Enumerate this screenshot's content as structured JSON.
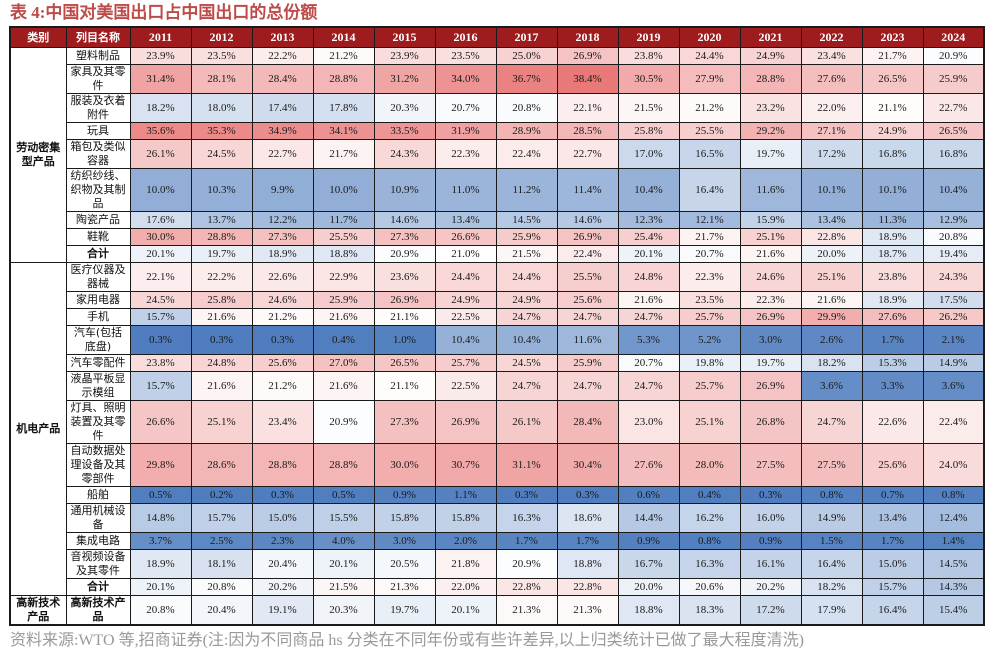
{
  "title": "表 4:中国对美国出口占中国出口的总份额",
  "source_note": "资料来源:WTO 等,招商证券(注:因为不同商品 hs 分类在不同年份或有些许差异,以上归类统计已做了最大程度清洗)",
  "colors": {
    "title_text": "#BE4B48",
    "header_bg": "#9E1B1E",
    "header_text": "#FFFFFF",
    "border": "#1A1A1A",
    "heat_blue_low": "#4E7CBE",
    "heat_white_mid": "#FFFFFF",
    "heat_red_high": "#E97878",
    "source_text": "#999999"
  },
  "chart_data": {
    "type": "table",
    "subtype": "heatmap",
    "value_format": "percent_one_decimal",
    "color_scale": {
      "low": 0,
      "mid": 21.0,
      "high": 38.4,
      "low_color": "#4E7CBE",
      "mid_color": "#FFFFFF",
      "high_color": "#E97878"
    },
    "col_headers": [
      "类别",
      "列目名称",
      "2011",
      "2012",
      "2013",
      "2014",
      "2015",
      "2016",
      "2017",
      "2018",
      "2019",
      "2020",
      "2021",
      "2022",
      "2023",
      "2024"
    ],
    "groups": [
      {
        "category": "劳动密集型产品",
        "rows": [
          {
            "label": "塑料制品",
            "bold": false,
            "values": [
              23.9,
              23.5,
              22.2,
              21.2,
              23.9,
              23.5,
              25.0,
              26.9,
              23.8,
              24.4,
              24.9,
              23.4,
              21.7,
              20.9
            ]
          },
          {
            "label": "家具及其零件",
            "bold": false,
            "values": [
              31.4,
              28.1,
              28.4,
              28.8,
              31.2,
              34.0,
              36.7,
              38.4,
              30.5,
              27.9,
              28.8,
              27.6,
              26.5,
              25.9
            ]
          },
          {
            "label": "服装及衣着附件",
            "bold": false,
            "values": [
              18.2,
              18.0,
              17.4,
              17.8,
              20.3,
              20.7,
              20.8,
              22.1,
              21.5,
              21.2,
              23.2,
              22.0,
              21.1,
              22.7
            ]
          },
          {
            "label": "玩具",
            "bold": false,
            "values": [
              35.6,
              35.3,
              34.9,
              34.1,
              33.5,
              31.9,
              28.9,
              28.5,
              25.8,
              25.5,
              29.2,
              27.1,
              24.9,
              26.5
            ]
          },
          {
            "label": "箱包及类似容器",
            "bold": false,
            "values": [
              26.1,
              24.5,
              22.7,
              21.7,
              24.3,
              22.3,
              22.4,
              22.7,
              17.0,
              16.5,
              19.7,
              17.2,
              16.8,
              16.8
            ]
          },
          {
            "label": "纺织纱线、织物及其制品",
            "bold": false,
            "values": [
              10.0,
              10.3,
              9.9,
              10.0,
              10.9,
              11.0,
              11.2,
              11.4,
              10.4,
              16.4,
              11.6,
              10.1,
              10.1,
              10.4
            ]
          },
          {
            "label": "陶瓷产品",
            "bold": false,
            "values": [
              17.6,
              13.7,
              12.2,
              11.7,
              14.6,
              13.4,
              14.5,
              14.6,
              12.3,
              12.1,
              15.9,
              13.4,
              11.3,
              12.9
            ]
          },
          {
            "label": "鞋靴",
            "bold": false,
            "values": [
              30.0,
              28.8,
              27.3,
              25.5,
              27.3,
              26.6,
              25.9,
              26.9,
              25.4,
              21.7,
              25.1,
              22.8,
              18.9,
              20.8
            ]
          },
          {
            "label": "合计",
            "bold": true,
            "values": [
              20.1,
              19.7,
              18.9,
              18.8,
              20.9,
              21.0,
              21.5,
              22.4,
              20.1,
              20.7,
              21.6,
              20.0,
              18.7,
              19.4
            ]
          }
        ]
      },
      {
        "category": "机电产品",
        "rows": [
          {
            "label": "医疗仪器及器械",
            "bold": false,
            "values": [
              22.1,
              22.2,
              22.6,
              22.9,
              23.6,
              24.4,
              24.4,
              25.5,
              24.8,
              22.3,
              24.6,
              25.1,
              23.8,
              24.3
            ]
          },
          {
            "label": "家用电器",
            "bold": false,
            "values": [
              24.5,
              25.8,
              24.6,
              25.9,
              26.9,
              24.9,
              24.9,
              25.6,
              21.6,
              23.5,
              22.3,
              21.6,
              18.9,
              17.5
            ]
          },
          {
            "label": "手机",
            "bold": false,
            "values": [
              15.7,
              21.6,
              21.2,
              21.6,
              21.1,
              22.5,
              24.7,
              24.7,
              24.7,
              25.7,
              26.9,
              29.9,
              27.6,
              26.2
            ]
          },
          {
            "label": "汽车(包括底盘)",
            "bold": false,
            "values": [
              0.3,
              0.3,
              0.3,
              0.4,
              1.0,
              10.4,
              10.4,
              11.6,
              5.3,
              5.2,
              3.0,
              2.6,
              1.7,
              2.1
            ]
          },
          {
            "label": "汽车零配件",
            "bold": false,
            "values": [
              23.8,
              24.8,
              25.6,
              27.0,
              26.5,
              25.7,
              24.5,
              25.9,
              20.7,
              19.8,
              19.7,
              18.2,
              15.3,
              14.9
            ]
          },
          {
            "label": "液晶平板显示模组",
            "bold": false,
            "values": [
              15.7,
              21.6,
              21.2,
              21.6,
              21.1,
              22.5,
              24.7,
              24.7,
              24.7,
              25.7,
              26.9,
              3.6,
              3.3,
              3.6
            ]
          },
          {
            "label": "灯具、照明装置及其零件",
            "bold": false,
            "values": [
              26.6,
              25.1,
              23.4,
              20.9,
              27.3,
              26.9,
              26.1,
              28.4,
              23.0,
              25.1,
              26.8,
              24.7,
              22.6,
              22.4
            ]
          },
          {
            "label": "自动数据处理设备及其零部件",
            "bold": false,
            "values": [
              29.8,
              28.6,
              28.8,
              28.8,
              30.0,
              30.7,
              31.1,
              30.4,
              27.6,
              28.0,
              27.5,
              27.5,
              25.6,
              24.0
            ]
          },
          {
            "label": "船舶",
            "bold": false,
            "values": [
              0.5,
              0.2,
              0.3,
              0.5,
              0.9,
              1.1,
              0.3,
              0.3,
              0.6,
              0.4,
              0.3,
              0.8,
              0.7,
              0.8
            ]
          },
          {
            "label": "通用机械设备",
            "bold": false,
            "values": [
              14.8,
              15.7,
              15.0,
              15.5,
              15.8,
              15.8,
              16.3,
              18.6,
              14.4,
              16.2,
              16.0,
              14.9,
              13.4,
              12.4
            ]
          },
          {
            "label": "集成电路",
            "bold": false,
            "values": [
              3.7,
              2.5,
              2.3,
              4.0,
              3.0,
              2.0,
              1.7,
              1.7,
              0.9,
              0.8,
              0.9,
              1.5,
              1.7,
              1.4
            ]
          },
          {
            "label": "音视频设备及其零件",
            "bold": false,
            "values": [
              18.9,
              18.1,
              20.4,
              20.1,
              20.5,
              21.8,
              20.9,
              18.8,
              16.7,
              16.3,
              16.1,
              16.4,
              15.0,
              14.5
            ]
          },
          {
            "label": "合计",
            "bold": true,
            "values": [
              20.1,
              20.8,
              20.2,
              21.5,
              21.3,
              22.0,
              22.8,
              22.8,
              20.0,
              20.6,
              20.2,
              18.2,
              15.7,
              14.3
            ]
          }
        ]
      },
      {
        "category": "高新技术产品",
        "rows": [
          {
            "label": "高新技术产品",
            "bold": true,
            "values": [
              20.8,
              20.4,
              19.1,
              20.3,
              19.7,
              20.1,
              21.3,
              21.3,
              18.8,
              18.3,
              17.2,
              17.9,
              16.4,
              15.4
            ]
          }
        ]
      }
    ]
  }
}
